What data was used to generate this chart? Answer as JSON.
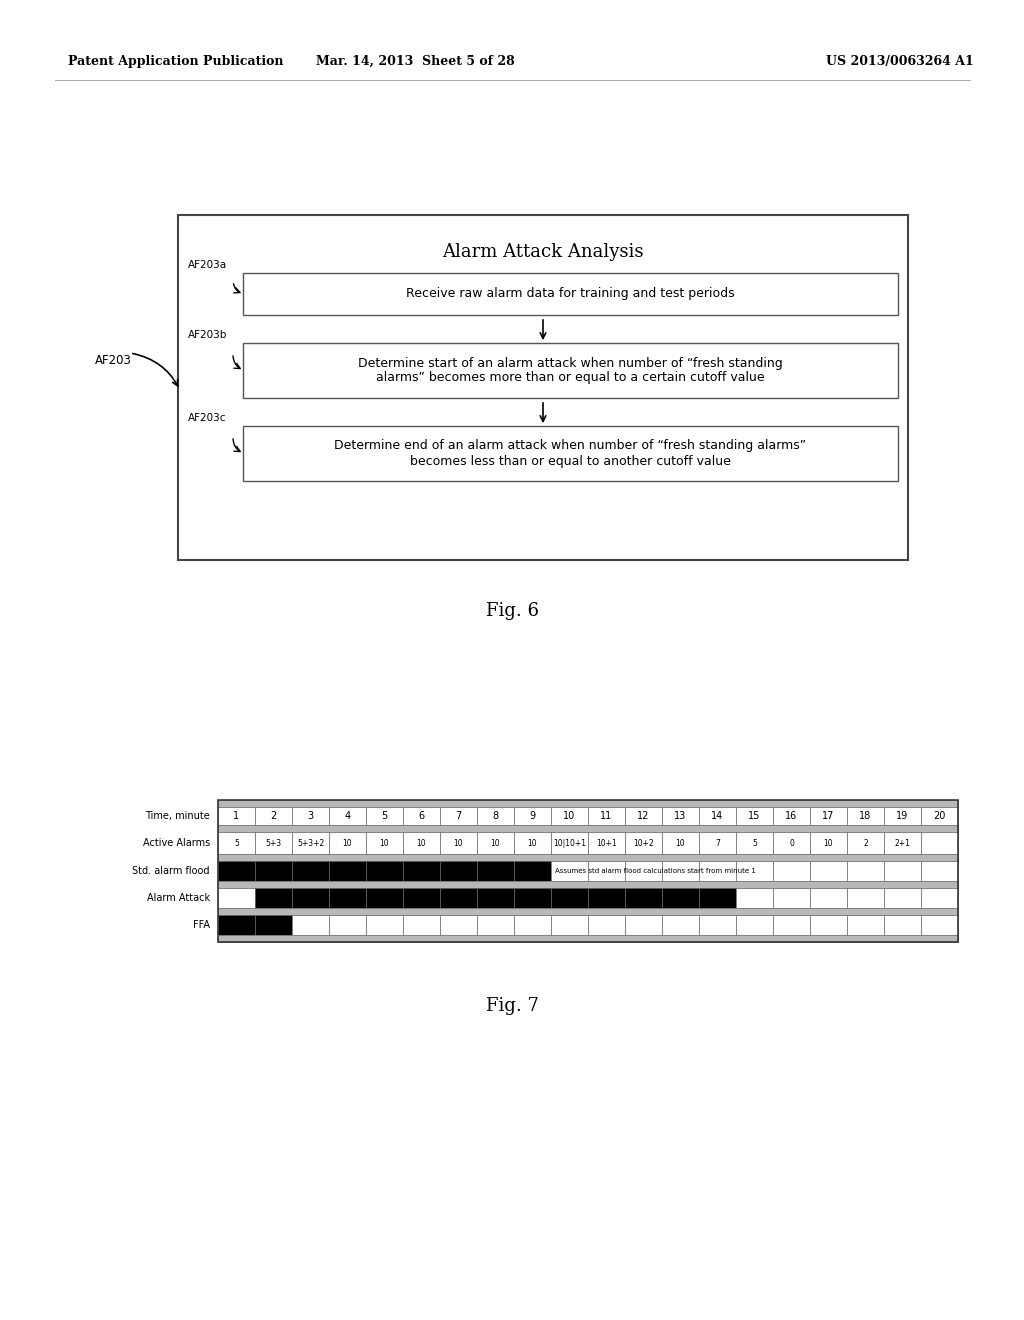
{
  "header_left": "Patent Application Publication",
  "header_mid": "Mar. 14, 2013  Sheet 5 of 28",
  "header_right": "US 2013/0063264 A1",
  "fig6_title": "Alarm Attack Analysis",
  "fig6_label": "AF203",
  "box_a_label": "AF203a",
  "box_b_label": "AF203b",
  "box_c_label": "AF203c",
  "box_a_text": "Receive raw alarm data for training and test periods",
  "box_b_text": "Determine start of an alarm attack when number of “fresh standing\nalarms” becomes more than or equal to a certain cutoff value",
  "box_c_text": "Determine end of an alarm attack when number of “fresh standing alarms”\nbecomes less than or equal to another cutoff value",
  "fig6_caption": "Fig. 6",
  "fig7_caption": "Fig. 7",
  "table_row_labels": [
    "Time, minute",
    "Active Alarms",
    "Std. alarm flood",
    "Alarm Attack",
    "FFA"
  ],
  "time_values": [
    "1",
    "2",
    "3",
    "4",
    "5",
    "6",
    "7",
    "8",
    "9",
    "10",
    "11",
    "12",
    "13",
    "14",
    "15",
    "16",
    "17",
    "18",
    "19",
    "20"
  ],
  "active_alarms": [
    "5",
    "5+3",
    "5+3+2",
    "10",
    "10",
    "10",
    "10",
    "10",
    "10",
    "10|10+1",
    "10+1",
    "10+2",
    "10",
    "7",
    "5",
    "0",
    "10",
    "2",
    "2+1",
    ""
  ],
  "std_flood_filled": [
    1,
    1,
    1,
    1,
    1,
    1,
    1,
    1,
    1,
    0,
    0,
    0,
    0,
    0,
    0,
    0,
    0,
    0,
    0,
    0
  ],
  "alarm_attack_filled": [
    0,
    1,
    1,
    1,
    1,
    1,
    1,
    1,
    1,
    1,
    1,
    1,
    1,
    1,
    0,
    0,
    0,
    0,
    0,
    0
  ],
  "ffa_filled": [
    1,
    1,
    0,
    0,
    0,
    0,
    0,
    0,
    0,
    0,
    0,
    0,
    0,
    0,
    0,
    0,
    0,
    0,
    0,
    0
  ],
  "std_flood_note": "Assumes std alarm flood calculations start from minute 1",
  "background_color": "#ffffff",
  "text_color": "#000000",
  "fill_color": "#000000",
  "gray_color": "#b8b8b8"
}
